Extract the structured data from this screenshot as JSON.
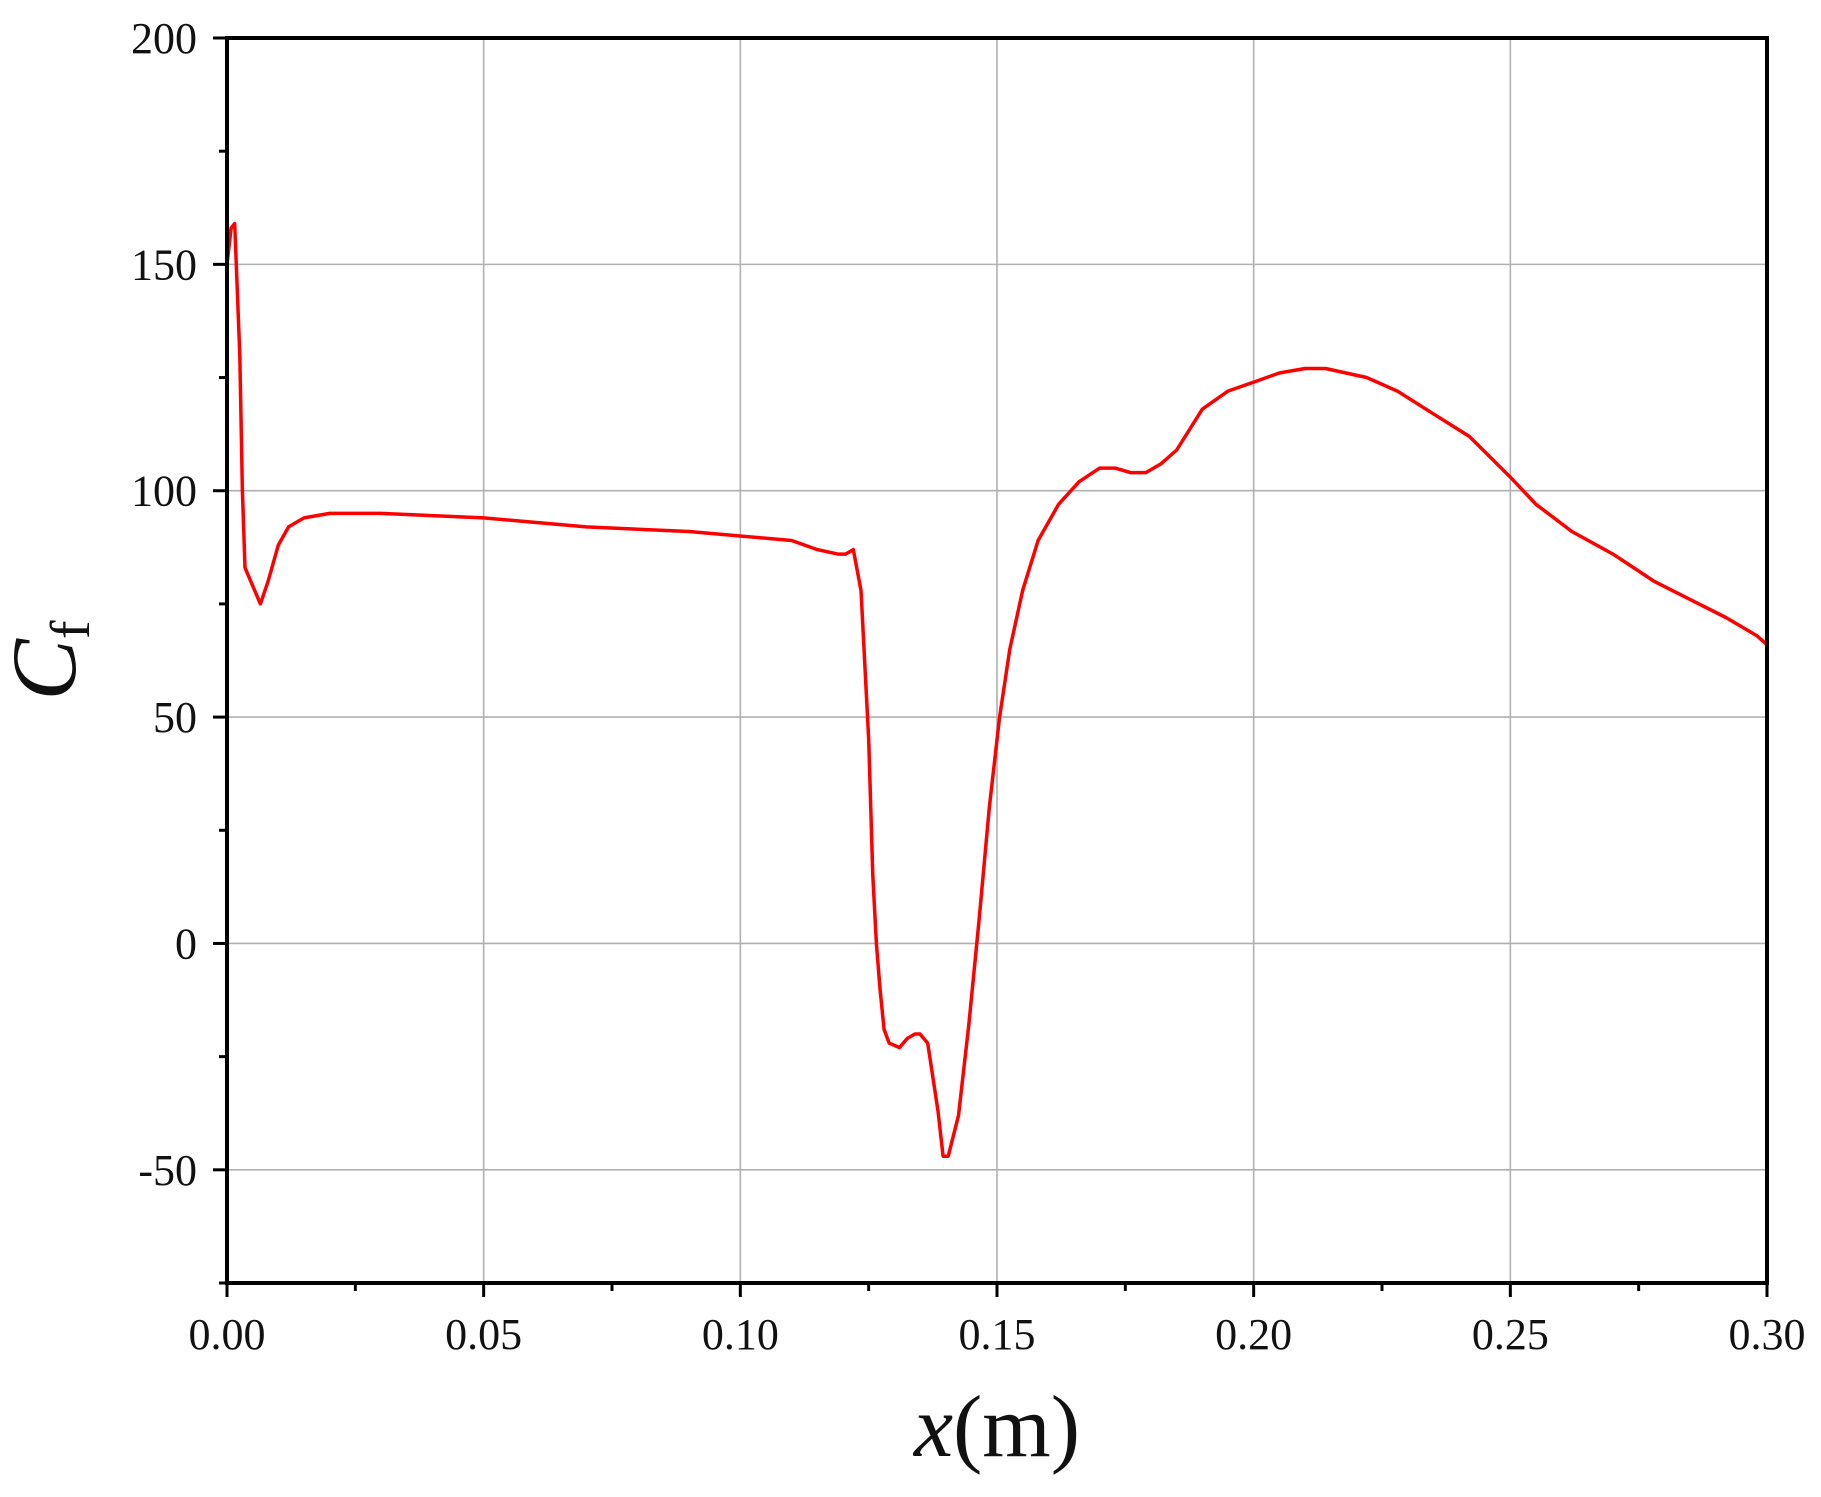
{
  "colors": {
    "series_line": "#ff0000",
    "grid": "#b0b0b0",
    "axis": "#000000",
    "background": "#ffffff"
  },
  "chart_data": {
    "type": "line",
    "title": "",
    "xlabel": "x(m)",
    "xlabel_parts": {
      "var": "x",
      "unit": "(m)"
    },
    "ylabel": "Cf",
    "ylabel_parts": {
      "main": "C",
      "sub": "f"
    },
    "xlim": [
      0.0,
      0.3
    ],
    "ylim": [
      -75,
      200
    ],
    "xticks": [
      0.0,
      0.05,
      0.1,
      0.15,
      0.2,
      0.25,
      0.3
    ],
    "xtick_labels": [
      "0.00",
      "0.05",
      "0.10",
      "0.15",
      "0.20",
      "0.25",
      "0.30"
    ],
    "yticks": [
      -50,
      0,
      50,
      100,
      150,
      200
    ],
    "ytick_labels": [
      "-50",
      "0",
      "50",
      "100",
      "150",
      "200"
    ],
    "x_minor_ticks": [
      0.025,
      0.075,
      0.125,
      0.175,
      0.225,
      0.275
    ],
    "y_minor_ticks": [
      -75,
      -25,
      25,
      75,
      125,
      175
    ],
    "grid": true,
    "legend": "none",
    "series": [
      {
        "color": "#ff0000",
        "x": [
          0.0,
          0.0008,
          0.0015,
          0.0025,
          0.003,
          0.0035,
          0.005,
          0.0065,
          0.008,
          0.01,
          0.012,
          0.015,
          0.02,
          0.03,
          0.05,
          0.07,
          0.09,
          0.11,
          0.115,
          0.119,
          0.1205,
          0.122,
          0.1235,
          0.125,
          0.1258,
          0.1265,
          0.1272,
          0.128,
          0.129,
          0.131,
          0.1325,
          0.134,
          0.135,
          0.1365,
          0.1385,
          0.1395,
          0.1405,
          0.1425,
          0.1445,
          0.1465,
          0.1485,
          0.1505,
          0.1525,
          0.155,
          0.158,
          0.162,
          0.166,
          0.17,
          0.173,
          0.176,
          0.179,
          0.182,
          0.185,
          0.19,
          0.195,
          0.2,
          0.205,
          0.21,
          0.214,
          0.218,
          0.222,
          0.228,
          0.235,
          0.242,
          0.25,
          0.255,
          0.262,
          0.27,
          0.278,
          0.285,
          0.292,
          0.298,
          0.3
        ],
        "y": [
          150,
          158,
          159,
          130,
          100,
          83,
          79,
          75,
          80,
          88,
          92,
          94,
          95,
          95,
          94,
          92,
          91,
          89,
          87,
          86,
          86,
          87,
          78,
          45,
          15,
          0,
          -10,
          -19,
          -22,
          -23,
          -21,
          -20,
          -20,
          -22,
          -37,
          -47,
          -47,
          -38,
          -18,
          5,
          30,
          50,
          65,
          78,
          89,
          97,
          102,
          105,
          105,
          104,
          104,
          106,
          109,
          118,
          122,
          124,
          126,
          127,
          127,
          126,
          125,
          122,
          117,
          112,
          103,
          97,
          91,
          86,
          80,
          76,
          72,
          68,
          66
        ]
      }
    ]
  }
}
